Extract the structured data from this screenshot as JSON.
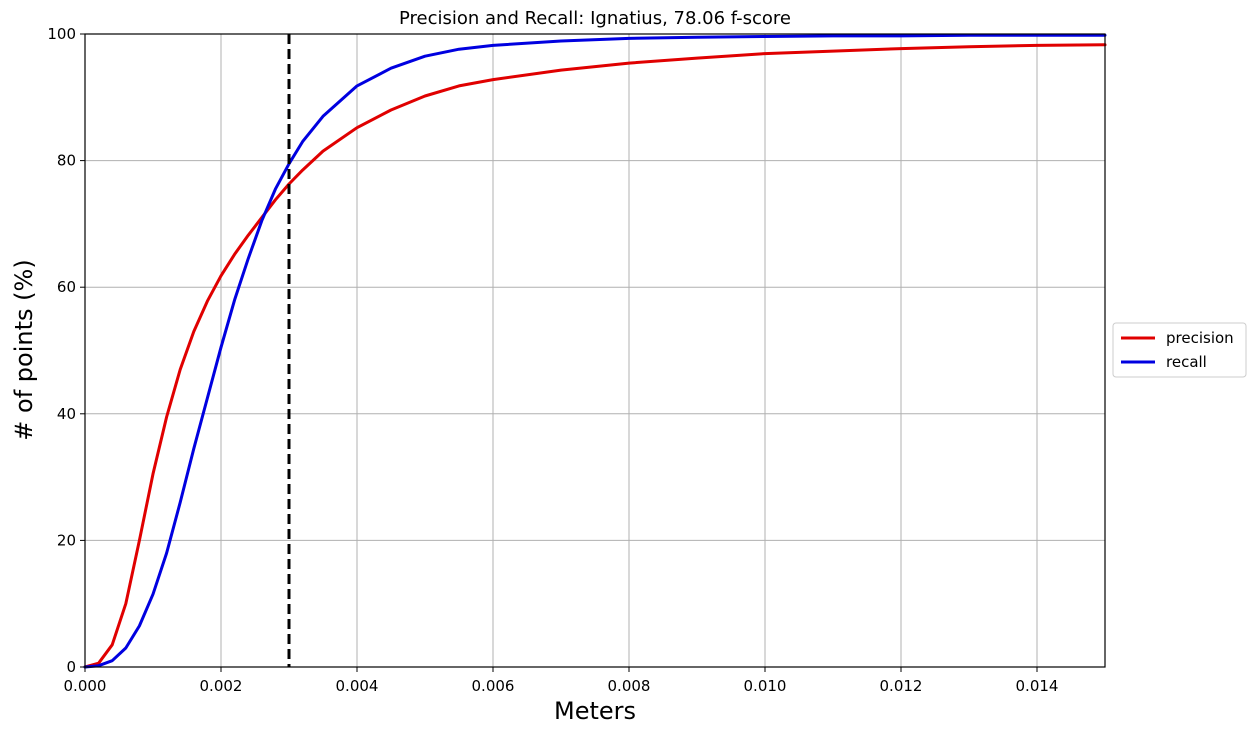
{
  "chart_data": {
    "type": "line",
    "title": "Precision and Recall: Ignatius, 78.06 f-score",
    "xlabel": "Meters",
    "ylabel": "# of points (%)",
    "xlim": [
      0.0,
      0.015
    ],
    "ylim": [
      0,
      100
    ],
    "x_ticks": [
      "0.000",
      "0.002",
      "0.004",
      "0.006",
      "0.008",
      "0.010",
      "0.012",
      "0.014"
    ],
    "y_ticks": [
      "0",
      "20",
      "40",
      "60",
      "80",
      "100"
    ],
    "grid": true,
    "legend_position": "right",
    "threshold": {
      "x": 0.003,
      "style": "dashed",
      "color": "#000000"
    },
    "series": [
      {
        "name": "precision",
        "color": "#e00000",
        "x": [
          0.0,
          0.0002,
          0.0004,
          0.0006,
          0.0008,
          0.001,
          0.0012,
          0.0014,
          0.0016,
          0.0018,
          0.002,
          0.0022,
          0.0024,
          0.0026,
          0.0028,
          0.003,
          0.0032,
          0.0035,
          0.004,
          0.0045,
          0.005,
          0.0055,
          0.006,
          0.007,
          0.008,
          0.009,
          0.01,
          0.011,
          0.012,
          0.013,
          0.014,
          0.015
        ],
        "y": [
          0.0,
          0.6,
          3.5,
          10.0,
          20.0,
          30.5,
          39.5,
          47.0,
          53.0,
          57.8,
          61.8,
          65.2,
          68.2,
          71.0,
          73.8,
          76.3,
          78.5,
          81.5,
          85.2,
          88.0,
          90.2,
          91.8,
          92.8,
          94.3,
          95.4,
          96.2,
          96.9,
          97.3,
          97.7,
          98.0,
          98.2,
          98.3
        ]
      },
      {
        "name": "recall",
        "color": "#0000e0",
        "x": [
          0.0,
          0.0002,
          0.0004,
          0.0006,
          0.0008,
          0.001,
          0.0012,
          0.0014,
          0.0016,
          0.0018,
          0.002,
          0.0022,
          0.0024,
          0.0026,
          0.0028,
          0.003,
          0.0032,
          0.0035,
          0.004,
          0.0045,
          0.005,
          0.0055,
          0.006,
          0.007,
          0.008,
          0.009,
          0.01,
          0.011,
          0.012,
          0.013,
          0.014,
          0.015
        ],
        "y": [
          0.0,
          0.2,
          1.0,
          3.0,
          6.5,
          11.5,
          18.0,
          26.0,
          34.5,
          42.5,
          50.5,
          58.0,
          64.5,
          70.5,
          75.5,
          79.5,
          83.0,
          87.0,
          91.8,
          94.6,
          96.5,
          97.6,
          98.2,
          98.9,
          99.3,
          99.5,
          99.6,
          99.7,
          99.7,
          99.8,
          99.8,
          99.8
        ]
      }
    ]
  }
}
